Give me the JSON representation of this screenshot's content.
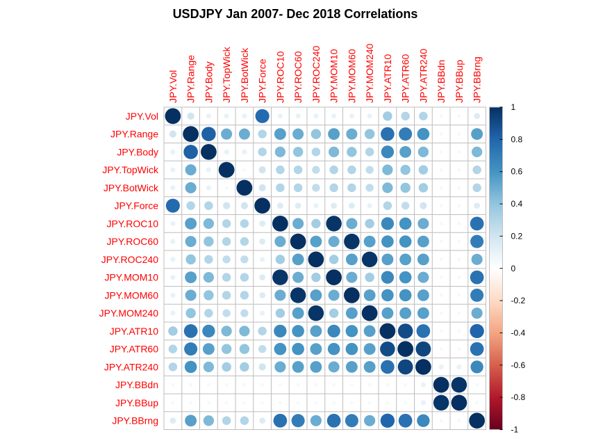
{
  "chart_data": {
    "type": "heatmap",
    "subtype": "correlation-circle-matrix",
    "title": "USDJPY Jan 2007- Dec 2018 Correlations",
    "variables": [
      "JPY.Vol",
      "JPY.Range",
      "JPY.Body",
      "JPY.TopWick",
      "JPY.BotWick",
      "JPY.Force",
      "JPY.ROC10",
      "JPY.ROC60",
      "JPY.ROC240",
      "JPY.MOM10",
      "JPY.MOM60",
      "JPY.MOM240",
      "JPY.ATR10",
      "JPY.ATR60",
      "JPY.ATR240",
      "JPY.BBdn",
      "JPY.BBup",
      "JPY.BBrng"
    ],
    "matrix": [
      [
        1.0,
        0.2,
        0.1,
        0.1,
        0.1,
        0.78,
        0.1,
        0.1,
        0.1,
        0.1,
        0.1,
        0.1,
        0.35,
        0.3,
        0.3,
        0.05,
        0.05,
        0.15
      ],
      [
        0.2,
        1.0,
        0.82,
        0.5,
        0.5,
        0.3,
        0.55,
        0.5,
        0.4,
        0.55,
        0.5,
        0.4,
        0.75,
        0.7,
        0.6,
        0.05,
        0.05,
        0.55
      ],
      [
        0.1,
        0.82,
        1.0,
        0.1,
        0.1,
        0.3,
        0.45,
        0.4,
        0.3,
        0.45,
        0.4,
        0.3,
        0.65,
        0.55,
        0.45,
        0.05,
        0.05,
        0.45
      ],
      [
        0.1,
        0.5,
        0.1,
        1.0,
        0.05,
        0.2,
        0.3,
        0.3,
        0.25,
        0.3,
        0.3,
        0.25,
        0.45,
        0.4,
        0.35,
        0.05,
        0.05,
        0.3
      ],
      [
        0.1,
        0.5,
        0.1,
        0.05,
        1.0,
        0.2,
        0.3,
        0.3,
        0.25,
        0.3,
        0.3,
        0.25,
        0.45,
        0.4,
        0.35,
        0.05,
        0.05,
        0.3
      ],
      [
        0.78,
        0.3,
        0.3,
        0.2,
        0.2,
        1.0,
        0.15,
        0.15,
        0.1,
        0.15,
        0.15,
        0.1,
        0.3,
        0.25,
        0.2,
        0.05,
        0.05,
        0.15
      ],
      [
        0.1,
        0.55,
        0.45,
        0.3,
        0.3,
        0.15,
        1.0,
        0.5,
        0.35,
        0.98,
        0.5,
        0.35,
        0.65,
        0.6,
        0.5,
        0.05,
        0.05,
        0.75
      ],
      [
        0.1,
        0.5,
        0.4,
        0.3,
        0.3,
        0.15,
        0.5,
        1.0,
        0.55,
        0.5,
        0.98,
        0.55,
        0.6,
        0.6,
        0.55,
        0.05,
        0.05,
        0.7
      ],
      [
        0.1,
        0.4,
        0.3,
        0.25,
        0.25,
        0.1,
        0.35,
        0.55,
        1.0,
        0.35,
        0.55,
        0.98,
        0.55,
        0.55,
        0.55,
        0.05,
        0.05,
        0.5
      ],
      [
        0.1,
        0.55,
        0.45,
        0.3,
        0.3,
        0.15,
        0.98,
        0.5,
        0.35,
        1.0,
        0.5,
        0.35,
        0.65,
        0.6,
        0.5,
        0.05,
        0.05,
        0.75
      ],
      [
        0.1,
        0.5,
        0.4,
        0.3,
        0.3,
        0.15,
        0.5,
        0.98,
        0.55,
        0.5,
        1.0,
        0.55,
        0.6,
        0.6,
        0.55,
        0.05,
        0.05,
        0.7
      ],
      [
        0.1,
        0.4,
        0.3,
        0.25,
        0.25,
        0.1,
        0.35,
        0.55,
        0.98,
        0.35,
        0.55,
        1.0,
        0.55,
        0.55,
        0.55,
        0.05,
        0.05,
        0.5
      ],
      [
        0.35,
        0.75,
        0.65,
        0.45,
        0.45,
        0.3,
        0.65,
        0.6,
        0.55,
        0.65,
        0.6,
        0.55,
        1.0,
        0.9,
        0.75,
        0.05,
        0.05,
        0.8
      ],
      [
        0.3,
        0.7,
        0.55,
        0.4,
        0.4,
        0.25,
        0.6,
        0.6,
        0.55,
        0.6,
        0.6,
        0.55,
        0.9,
        1.0,
        0.92,
        0.05,
        0.05,
        0.75
      ],
      [
        0.3,
        0.6,
        0.45,
        0.35,
        0.35,
        0.2,
        0.5,
        0.55,
        0.55,
        0.5,
        0.55,
        0.55,
        0.75,
        0.92,
        1.0,
        0.1,
        0.1,
        0.65
      ],
      [
        0.05,
        0.05,
        0.05,
        0.05,
        0.05,
        0.05,
        0.05,
        0.05,
        0.05,
        0.05,
        0.05,
        0.05,
        0.05,
        0.05,
        0.1,
        1.0,
        0.98,
        0.05
      ],
      [
        0.05,
        0.05,
        0.05,
        0.05,
        0.05,
        0.05,
        0.05,
        0.05,
        0.05,
        0.05,
        0.05,
        0.05,
        0.05,
        0.05,
        0.1,
        0.98,
        1.0,
        0.05
      ],
      [
        0.15,
        0.55,
        0.45,
        0.3,
        0.3,
        0.15,
        0.75,
        0.7,
        0.5,
        0.75,
        0.7,
        0.5,
        0.8,
        0.75,
        0.65,
        0.05,
        0.05,
        1.0
      ]
    ],
    "colorbar": {
      "min": -1,
      "max": 1,
      "ticks": [
        "1",
        "0.8",
        "0.6",
        "0.4",
        "0.2",
        "0",
        "-0.2",
        "-0.4",
        "-0.6",
        "-0.8",
        "-1"
      ],
      "tick_values": [
        1,
        0.8,
        0.6,
        0.4,
        0.2,
        0,
        -0.2,
        -0.4,
        -0.6,
        -0.8,
        -1
      ],
      "palette": [
        "#67001F",
        "#B2182B",
        "#D6604D",
        "#F4A582",
        "#FDDBC7",
        "#FFFFFF",
        "#D1E5F0",
        "#92C5DE",
        "#4393C3",
        "#2166AC",
        "#053061"
      ]
    },
    "label_color": "#FF0000",
    "grid_color": "#BEBEBE"
  }
}
